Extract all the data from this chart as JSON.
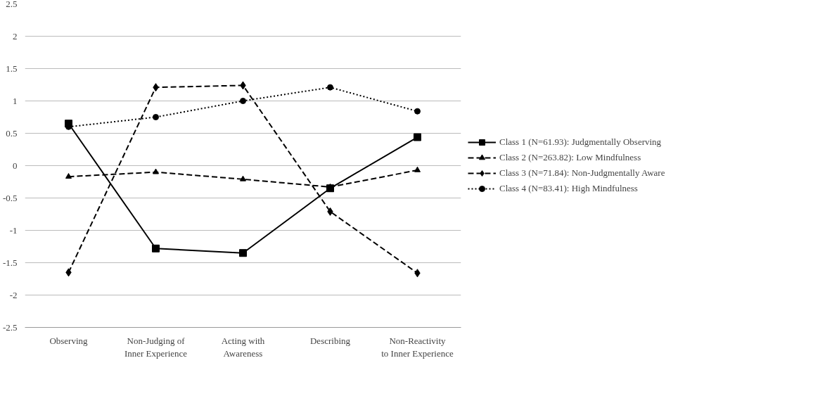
{
  "chart_data": {
    "type": "line",
    "categories": [
      "Observing",
      "Non-Judging of\nInner Experience",
      "Acting with\nAwareness",
      "Describing",
      "Non-Reactivity\nto Inner Experience"
    ],
    "series": [
      {
        "name": "Class 1 (N=61.93): Judgmentally Observing",
        "color": "#000000",
        "marker": "square",
        "line_style": "solid",
        "values": [
          0.65,
          -1.28,
          -1.35,
          -0.35,
          0.44
        ]
      },
      {
        "name": "Class 2 (N=263.82): Low Mindfulness",
        "color": "#000000",
        "marker": "triangle",
        "line_style": "dashed",
        "values": [
          -0.17,
          -0.1,
          -0.21,
          -0.33,
          -0.07
        ]
      },
      {
        "name": "Class 3 (N=71.84): Non-Judgmentally Aware",
        "color": "#000000",
        "marker": "diamond",
        "line_style": "dashed",
        "values": [
          -1.65,
          1.21,
          1.24,
          -0.71,
          -1.66
        ]
      },
      {
        "name": "Class 4 (N=83.41): High Mindfulness",
        "color": "#000000",
        "marker": "circle",
        "line_style": "dotted",
        "values": [
          0.6,
          0.75,
          1.0,
          1.21,
          0.84
        ]
      }
    ],
    "ylim": [
      -2.5,
      2.5
    ],
    "yticks": [
      -2.5,
      -2,
      -1.5,
      -1,
      -0.5,
      0,
      0.5,
      1,
      1.5,
      2,
      2.5
    ],
    "grid": "y",
    "legend": "right"
  }
}
